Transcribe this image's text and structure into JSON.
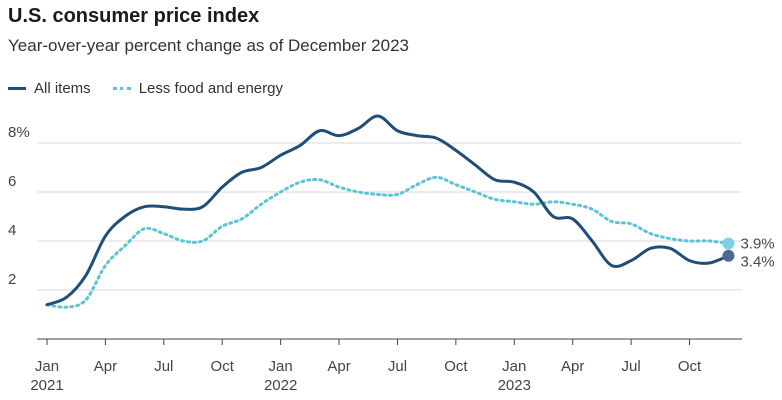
{
  "header": {
    "title": "U.S. consumer price index",
    "subtitle": "Year-over-year percent change as of December 2023"
  },
  "colors": {
    "all_items": "#1f4e79",
    "less_food_energy": "#5bc4d6",
    "end_marker_all": "#4a6a8e",
    "end_marker_core": "#7fd0e6",
    "grid": "#d9d9d9",
    "axis": "#444444"
  },
  "chart_data": {
    "type": "line",
    "title": "U.S. consumer price index",
    "subtitle": "Year-over-year percent change as of December 2023",
    "xlabel": "",
    "ylabel": "",
    "ylim": [
      0,
      9.5
    ],
    "yticks": [
      {
        "value": 2,
        "label": "2"
      },
      {
        "value": 4,
        "label": "4"
      },
      {
        "value": 6,
        "label": "6"
      },
      {
        "value": 8,
        "label": "8%"
      }
    ],
    "xticks": [
      {
        "month": 0,
        "label": "Jan",
        "year": "2021"
      },
      {
        "month": 3,
        "label": "Apr",
        "year": ""
      },
      {
        "month": 6,
        "label": "Jul",
        "year": ""
      },
      {
        "month": 9,
        "label": "Oct",
        "year": ""
      },
      {
        "month": 12,
        "label": "Jan",
        "year": "2022"
      },
      {
        "month": 15,
        "label": "Apr",
        "year": ""
      },
      {
        "month": 18,
        "label": "Jul",
        "year": ""
      },
      {
        "month": 21,
        "label": "Oct",
        "year": ""
      },
      {
        "month": 24,
        "label": "Jan",
        "year": "2023"
      },
      {
        "month": 27,
        "label": "Apr",
        "year": ""
      },
      {
        "month": 30,
        "label": "Jul",
        "year": ""
      },
      {
        "month": 33,
        "label": "Oct",
        "year": ""
      }
    ],
    "x": [
      "Jan 2021",
      "Feb 2021",
      "Mar 2021",
      "Apr 2021",
      "May 2021",
      "Jun 2021",
      "Jul 2021",
      "Aug 2021",
      "Sep 2021",
      "Oct 2021",
      "Nov 2021",
      "Dec 2021",
      "Jan 2022",
      "Feb 2022",
      "Mar 2022",
      "Apr 2022",
      "May 2022",
      "Jun 2022",
      "Jul 2022",
      "Aug 2022",
      "Sep 2022",
      "Oct 2022",
      "Nov 2022",
      "Dec 2022",
      "Jan 2023",
      "Feb 2023",
      "Mar 2023",
      "Apr 2023",
      "May 2023",
      "Jun 2023",
      "Jul 2023",
      "Aug 2023",
      "Sep 2023",
      "Oct 2023",
      "Nov 2023",
      "Dec 2023"
    ],
    "series": [
      {
        "name": "All items",
        "key": "all_items",
        "style": "solid",
        "values": [
          1.4,
          1.7,
          2.6,
          4.2,
          5.0,
          5.4,
          5.4,
          5.3,
          5.4,
          6.2,
          6.8,
          7.0,
          7.5,
          7.9,
          8.5,
          8.3,
          8.6,
          9.1,
          8.5,
          8.3,
          8.2,
          7.7,
          7.1,
          6.5,
          6.4,
          6.0,
          5.0,
          4.9,
          4.0,
          3.0,
          3.2,
          3.7,
          3.7,
          3.2,
          3.1,
          3.4
        ],
        "end_label": "3.4%"
      },
      {
        "name": "Less food and energy",
        "key": "less_food_energy",
        "style": "dotted",
        "values": [
          1.4,
          1.3,
          1.6,
          3.0,
          3.8,
          4.5,
          4.3,
          4.0,
          4.0,
          4.6,
          4.9,
          5.5,
          6.0,
          6.4,
          6.5,
          6.2,
          6.0,
          5.9,
          5.9,
          6.3,
          6.6,
          6.3,
          6.0,
          5.7,
          5.6,
          5.5,
          5.6,
          5.5,
          5.3,
          4.8,
          4.7,
          4.3,
          4.1,
          4.0,
          4.0,
          3.9
        ],
        "end_label": "3.9%"
      }
    ],
    "grid": true,
    "legend": "top-left"
  }
}
